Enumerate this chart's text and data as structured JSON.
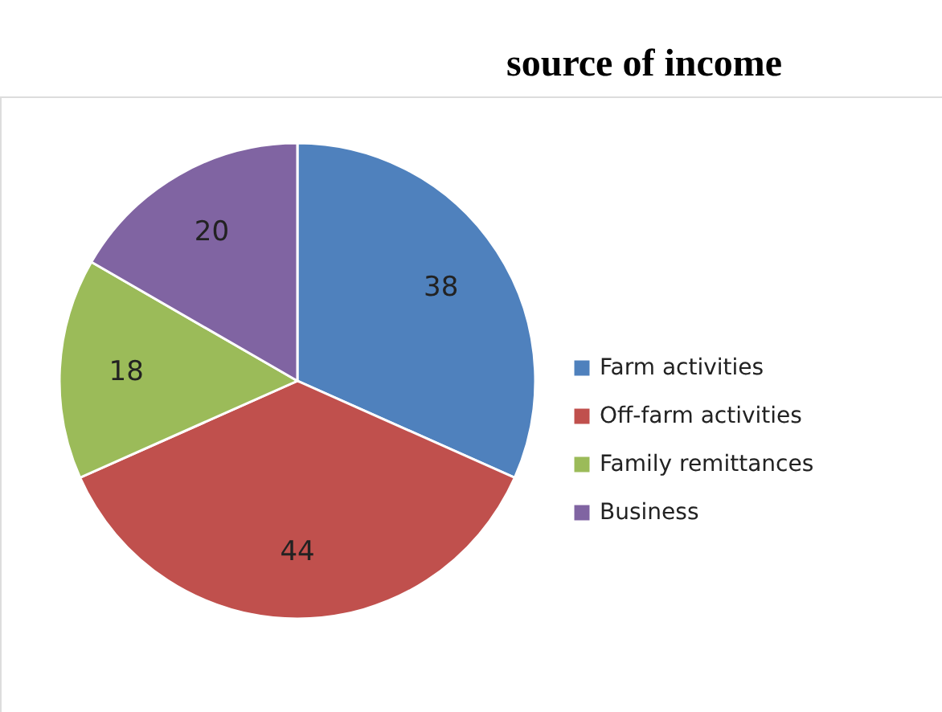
{
  "chart_data": {
    "type": "pie",
    "title": "source of income",
    "categories": [
      "Farm activities",
      "Off-farm activities",
      "Family remittances",
      "Business"
    ],
    "values": [
      38,
      44,
      18,
      20
    ],
    "colors": [
      "#4f81bd",
      "#c0504d",
      "#9bbb59",
      "#8064a2"
    ],
    "data_labels": true,
    "legend": "right"
  }
}
